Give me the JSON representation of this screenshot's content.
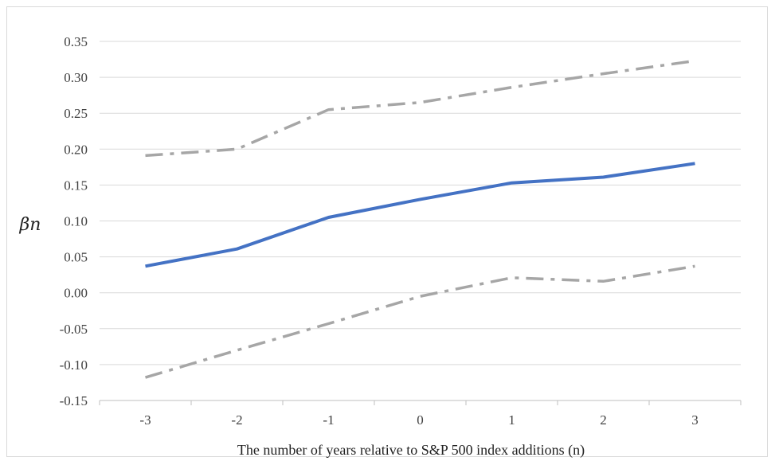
{
  "chart_data": {
    "type": "line",
    "xlabel": "The number of years relative to S&P 500 index additions (n)",
    "ylabel": "βn",
    "categories": [
      "-3",
      "-2",
      "-1",
      "0",
      "1",
      "2",
      "3"
    ],
    "ylim": [
      -0.15,
      0.35
    ],
    "ytick_labels": [
      "0.35",
      "0.30",
      "0.25",
      "0.20",
      "0.15",
      "0.10",
      "0.05",
      "0.00",
      "-0.05",
      "-0.10",
      "-0.15"
    ],
    "grid": "horizontal",
    "legend": "none",
    "series": [
      {
        "key": "estimate",
        "values": [
          0.037,
          0.061,
          0.105,
          0.13,
          0.153,
          0.161,
          0.18
        ],
        "color": "#4472C4",
        "style": "solid"
      },
      {
        "key": "upper",
        "values": [
          0.191,
          0.2,
          0.255,
          0.265,
          0.286,
          0.305,
          0.323
        ],
        "color": "#A6A6A6",
        "style": "dash-dot"
      },
      {
        "key": "lower",
        "values": [
          -0.118,
          -0.08,
          -0.043,
          -0.005,
          0.021,
          0.016,
          0.037
        ],
        "color": "#A6A6A6",
        "style": "dash-dot"
      }
    ]
  }
}
